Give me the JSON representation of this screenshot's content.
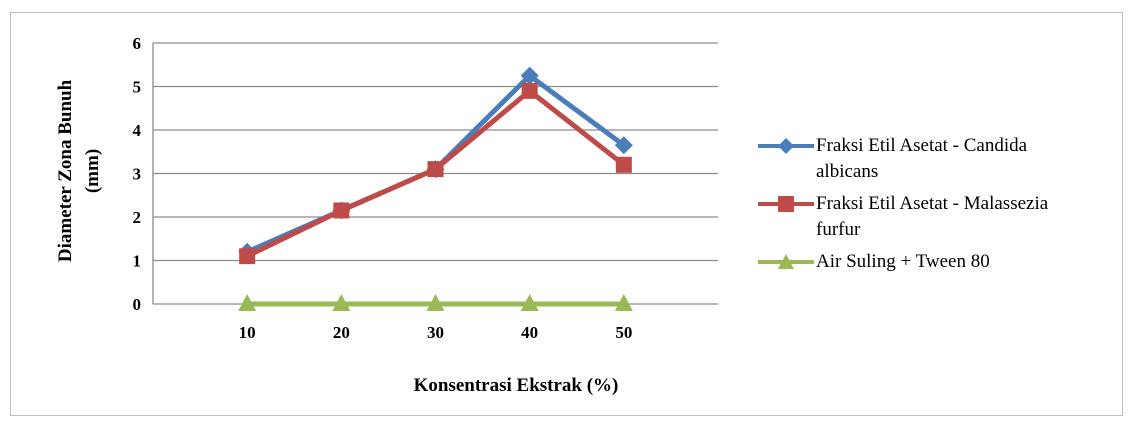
{
  "chart_data": {
    "type": "line",
    "categories": [
      "10",
      "20",
      "30",
      "40",
      "50"
    ],
    "ylim": [
      0,
      6
    ],
    "yticks": [
      0,
      1,
      2,
      3,
      4,
      5,
      6
    ],
    "ylabel_lines": [
      "Diameter Zona Bunuh",
      "(mm)"
    ],
    "xlabel": "Konsentrasi Ekstrak (%)",
    "grid": "horizontal",
    "legend_position": "right",
    "series": [
      {
        "name": "Fraksi Etil Asetat - Candida albicans",
        "name_lines": [
          "Fraksi Etil Asetat - Candida",
          "albicans"
        ],
        "values": [
          1.2,
          2.15,
          3.1,
          5.25,
          3.65
        ],
        "color": "#4a7ebb",
        "marker": "diamond"
      },
      {
        "name": "Fraksi Etil Asetat - Malassezia furfur",
        "name_lines": [
          "Fraksi Etil Asetat - Malassezia",
          "furfur"
        ],
        "values": [
          1.1,
          2.15,
          3.1,
          4.9,
          3.2
        ],
        "color": "#be4b48",
        "marker": "square"
      },
      {
        "name": "Air Suling + Tween 80",
        "name_lines": [
          "Air Suling + Tween 80"
        ],
        "values": [
          0,
          0,
          0,
          0,
          0
        ],
        "color": "#98b954",
        "marker": "triangle"
      }
    ]
  }
}
